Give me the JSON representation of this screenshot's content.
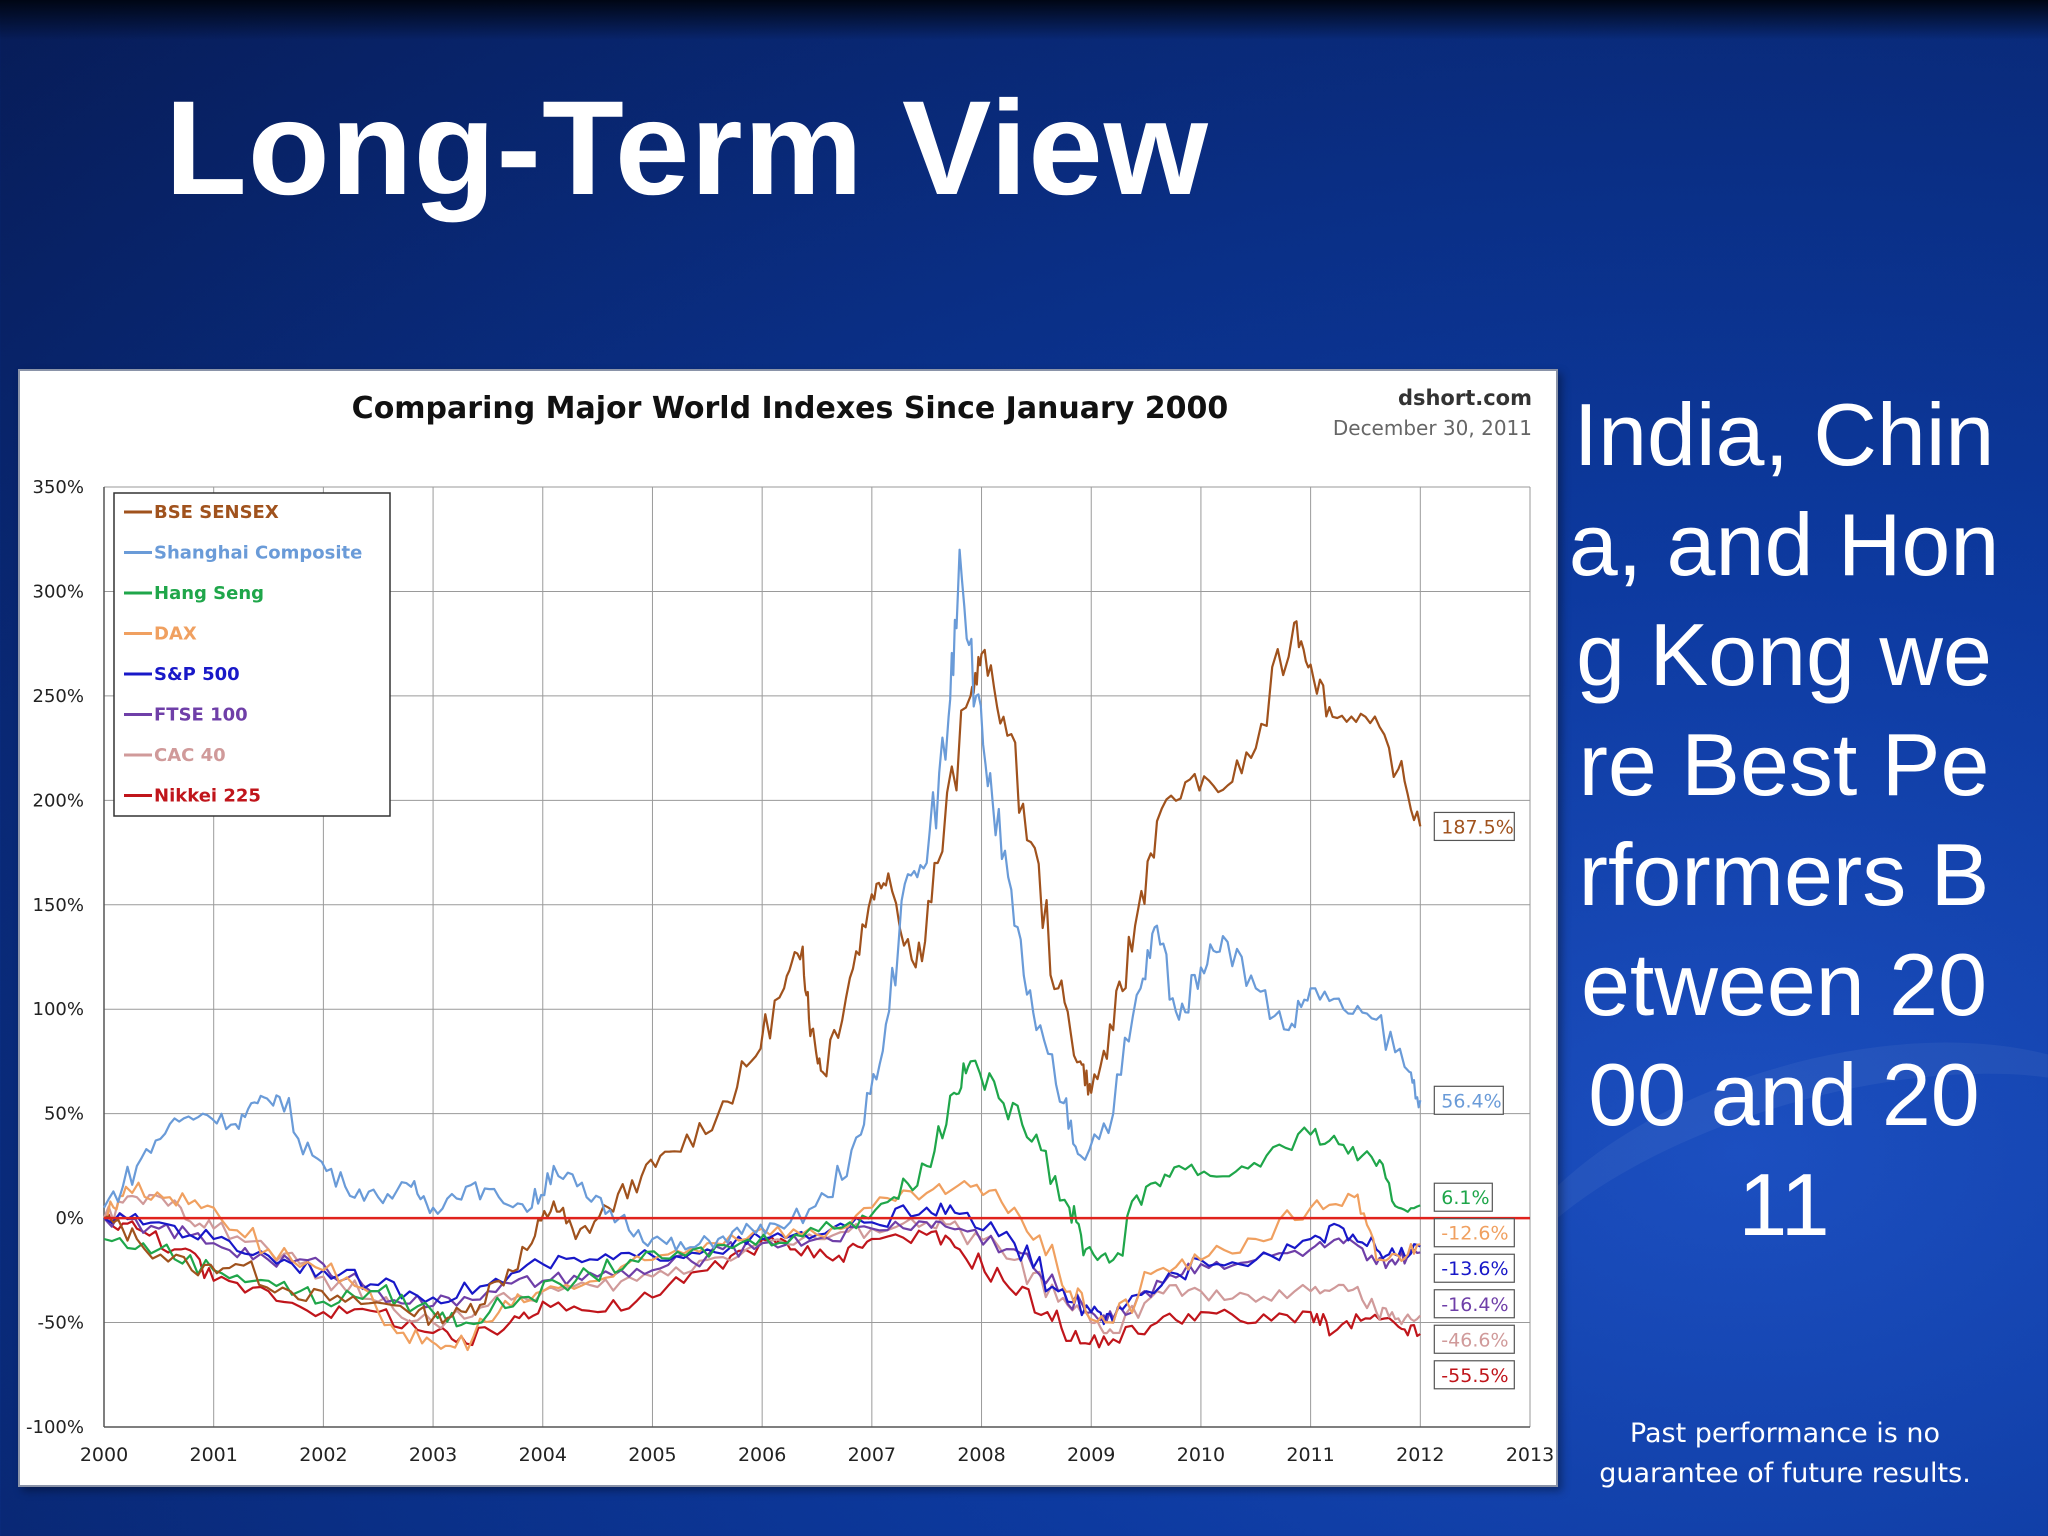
{
  "slide": {
    "title": "Long-Term View",
    "side_text": "India, China, and Hong Kong were Best Performers Between 2000 and 2011",
    "disclaimer": "Past performance is no guarantee of future results."
  },
  "chart_data": {
    "type": "line",
    "title": "Comparing Major World Indexes Since January 2000",
    "source": "dshort.com",
    "date": "December 30, 2011",
    "xlabel": "",
    "ylabel": "",
    "xlim": [
      2000,
      2013
    ],
    "ylim": [
      -100,
      350
    ],
    "x_ticks": [
      "2000",
      "2001",
      "2002",
      "2003",
      "2004",
      "2005",
      "2006",
      "2007",
      "2008",
      "2009",
      "2010",
      "2011",
      "2012",
      "2013"
    ],
    "y_ticks": [
      "350%",
      "300%",
      "250%",
      "200%",
      "150%",
      "100%",
      "50%",
      "0%",
      "-50%",
      "-100%"
    ],
    "grid": true,
    "legend_position": "top-left",
    "zero_line_color": "#e0221c",
    "series": [
      {
        "name": "BSE SENSEX",
        "color": "#a0521d",
        "end_label": "187.5%",
        "x": [
          2000,
          2000.3,
          2000.8,
          2001.2,
          2001.7,
          2002.2,
          2002.7,
          2003.0,
          2003.3,
          2003.6,
          2003.9,
          2004.1,
          2004.3,
          2004.6,
          2004.9,
          2005.2,
          2005.6,
          2005.9,
          2006.2,
          2006.37,
          2006.45,
          2006.55,
          2006.8,
          2007.0,
          2007.15,
          2007.4,
          2007.6,
          2007.9,
          2008.0,
          2008.2,
          2008.45,
          2008.7,
          2008.9,
          2009.0,
          2009.2,
          2009.4,
          2009.6,
          2009.9,
          2010.2,
          2010.5,
          2010.85,
          2011.0,
          2011.2,
          2011.5,
          2011.8,
          2012.0
        ],
        "y": [
          0,
          -10,
          -25,
          -22,
          -35,
          -40,
          -42,
          -48,
          -45,
          -30,
          -12,
          8,
          -10,
          5,
          20,
          32,
          50,
          75,
          110,
          130,
          90,
          70,
          115,
          155,
          165,
          120,
          170,
          250,
          270,
          240,
          180,
          110,
          75,
          60,
          90,
          140,
          190,
          210,
          205,
          225,
          285,
          265,
          240,
          240,
          215,
          187.5
        ]
      },
      {
        "name": "Shanghai Composite",
        "color": "#6a9bd8",
        "end_label": "56.4%",
        "x": [
          2000,
          2000.3,
          2000.6,
          2000.9,
          2001.2,
          2001.4,
          2001.6,
          2001.9,
          2002.2,
          2002.5,
          2002.8,
          2003.0,
          2003.3,
          2003.6,
          2003.9,
          2004.1,
          2004.4,
          2004.7,
          2005.0,
          2005.3,
          2005.6,
          2005.9,
          2006.2,
          2006.6,
          2006.9,
          2007.1,
          2007.3,
          2007.5,
          2007.7,
          2007.8,
          2007.95,
          2008.1,
          2008.3,
          2008.5,
          2008.75,
          2008.9,
          2009.2,
          2009.45,
          2009.6,
          2009.8,
          2010.0,
          2010.2,
          2010.5,
          2010.8,
          2011.0,
          2011.3,
          2011.6,
          2011.9,
          2012.0
        ],
        "y": [
          5,
          25,
          45,
          50,
          45,
          55,
          58,
          30,
          15,
          10,
          15,
          5,
          15,
          10,
          5,
          25,
          10,
          0,
          -10,
          -15,
          -10,
          -5,
          -5,
          10,
          40,
          80,
          160,
          170,
          240,
          320,
          250,
          200,
          140,
          90,
          55,
          30,
          50,
          110,
          140,
          95,
          120,
          135,
          110,
          90,
          110,
          100,
          95,
          70,
          56.4
        ]
      },
      {
        "name": "Hang Seng",
        "color": "#1fa64a",
        "end_label": "6.1%",
        "x": [
          2000,
          2000.5,
          2001.0,
          2001.5,
          2002.0,
          2002.5,
          2003.0,
          2003.3,
          2003.8,
          2004.3,
          2004.8,
          2005.3,
          2005.8,
          2006.3,
          2006.8,
          2007.2,
          2007.5,
          2007.75,
          2007.9,
          2008.2,
          2008.5,
          2008.8,
          2008.95,
          2009.2,
          2009.5,
          2009.8,
          2010.2,
          2010.6,
          2011.0,
          2011.3,
          2011.6,
          2011.8,
          2012.0
        ],
        "y": [
          -10,
          -15,
          -25,
          -30,
          -40,
          -35,
          -45,
          -50,
          -38,
          -30,
          -20,
          -18,
          -12,
          -8,
          -2,
          10,
          25,
          60,
          75,
          55,
          40,
          5,
          -15,
          -20,
          15,
          25,
          20,
          30,
          40,
          35,
          25,
          5,
          6.1
        ]
      },
      {
        "name": "DAX",
        "color": "#f0a060",
        "end_label": "-12.6%",
        "x": [
          2000,
          2000.2,
          2000.6,
          2001.0,
          2001.5,
          2002.0,
          2002.5,
          2002.9,
          2003.2,
          2003.6,
          2004.0,
          2004.5,
          2005.0,
          2005.5,
          2006.0,
          2006.5,
          2007.0,
          2007.5,
          2007.9,
          2008.3,
          2008.7,
          2008.95,
          2009.2,
          2009.6,
          2010.0,
          2010.5,
          2011.0,
          2011.4,
          2011.6,
          2011.8,
          2012.0
        ],
        "y": [
          0,
          15,
          10,
          5,
          -15,
          -25,
          -45,
          -60,
          -62,
          -45,
          -35,
          -30,
          -20,
          -12,
          -5,
          -8,
          5,
          12,
          15,
          5,
          -25,
          -45,
          -50,
          -25,
          -20,
          -10,
          5,
          10,
          -20,
          -18,
          -12.6
        ]
      },
      {
        "name": "S&P 500",
        "color": "#1818c8",
        "end_label": "-13.6%",
        "x": [
          2000,
          2000.5,
          2001.0,
          2001.5,
          2002.0,
          2002.5,
          2003.0,
          2003.5,
          2004.0,
          2004.5,
          2005.0,
          2005.5,
          2006.0,
          2006.5,
          2007.0,
          2007.5,
          2007.8,
          2008.3,
          2008.7,
          2009.0,
          2009.2,
          2009.5,
          2010.0,
          2010.5,
          2011.0,
          2011.3,
          2011.6,
          2011.8,
          2012.0
        ],
        "y": [
          0,
          -2,
          -10,
          -18,
          -25,
          -32,
          -38,
          -32,
          -22,
          -20,
          -18,
          -15,
          -10,
          -8,
          -2,
          5,
          2,
          -12,
          -35,
          -45,
          -50,
          -35,
          -20,
          -20,
          -10,
          -5,
          -15,
          -18,
          -13.6
        ]
      },
      {
        "name": "FTSE 100",
        "color": "#6f3fa8",
        "end_label": "-16.4%",
        "x": [
          2000,
          2000.5,
          2001.0,
          2001.5,
          2002.0,
          2002.5,
          2003.0,
          2003.5,
          2004.0,
          2004.5,
          2005.0,
          2005.5,
          2006.0,
          2006.5,
          2007.0,
          2007.5,
          2007.8,
          2008.3,
          2008.7,
          2009.0,
          2009.2,
          2009.6,
          2010.0,
          2010.5,
          2011.0,
          2011.3,
          2011.6,
          2011.8,
          2012.0
        ],
        "y": [
          0,
          -5,
          -12,
          -20,
          -22,
          -35,
          -42,
          -35,
          -30,
          -28,
          -25,
          -18,
          -12,
          -10,
          -5,
          -2,
          -5,
          -15,
          -35,
          -45,
          -48,
          -30,
          -22,
          -20,
          -15,
          -12,
          -22,
          -20,
          -16.4
        ]
      },
      {
        "name": "CAC 40",
        "color": "#d09a9a",
        "end_label": "-46.6%",
        "x": [
          2000,
          2000.3,
          2000.7,
          2001.0,
          2001.5,
          2002.0,
          2002.5,
          2003.0,
          2003.5,
          2004.0,
          2004.5,
          2005.0,
          2005.5,
          2006.0,
          2006.5,
          2007.0,
          2007.5,
          2007.8,
          2008.3,
          2008.7,
          2009.0,
          2009.2,
          2009.6,
          2010.0,
          2010.5,
          2011.0,
          2011.3,
          2011.6,
          2011.8,
          2012.0
        ],
        "y": [
          0,
          10,
          5,
          -5,
          -15,
          -28,
          -40,
          -50,
          -42,
          -35,
          -33,
          -28,
          -20,
          -12,
          -10,
          -5,
          -2,
          -5,
          -20,
          -40,
          -50,
          -55,
          -35,
          -35,
          -40,
          -35,
          -32,
          -45,
          -48,
          -46.6
        ]
      },
      {
        "name": "Nikkei 225",
        "color": "#c0151b",
        "end_label": "-55.5%",
        "x": [
          2000,
          2000.3,
          2000.7,
          2001.0,
          2001.5,
          2002.0,
          2002.5,
          2003.0,
          2003.3,
          2003.7,
          2004.0,
          2004.5,
          2005.0,
          2005.5,
          2006.0,
          2006.3,
          2006.7,
          2007.0,
          2007.5,
          2007.8,
          2008.2,
          2008.6,
          2008.9,
          2009.2,
          2009.6,
          2010.0,
          2010.5,
          2011.0,
          2011.2,
          2011.5,
          2011.8,
          2012.0
        ],
        "y": [
          0,
          -5,
          -15,
          -30,
          -35,
          -45,
          -45,
          -55,
          -60,
          -50,
          -40,
          -45,
          -38,
          -25,
          -10,
          -15,
          -18,
          -10,
          -8,
          -15,
          -30,
          -45,
          -60,
          -58,
          -50,
          -45,
          -50,
          -45,
          -55,
          -48,
          -52,
          -55.5
        ]
      }
    ]
  }
}
